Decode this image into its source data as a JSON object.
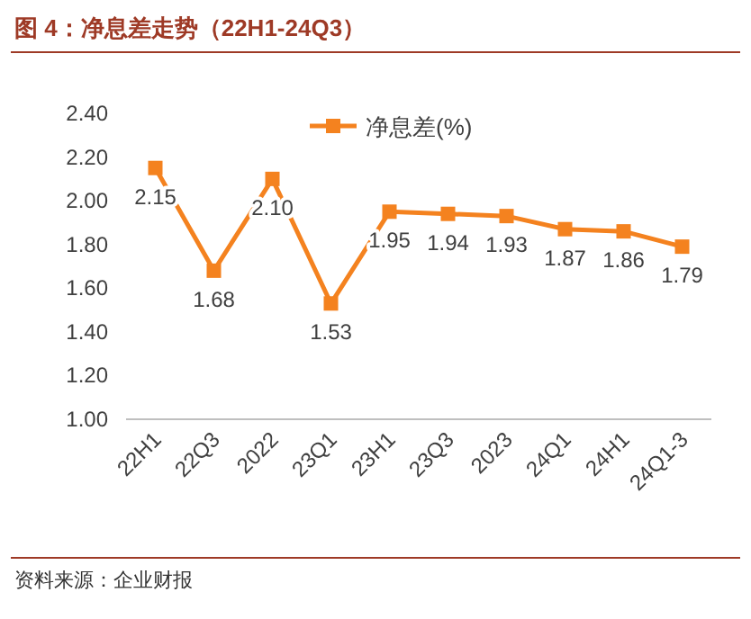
{
  "chart_data": {
    "type": "line",
    "title": "图 4：净息差走势（22H1-24Q3）",
    "annotations": [
      "资料来源：企业财报"
    ],
    "categories": [
      "22H1",
      "22Q3",
      "2022",
      "23Q1",
      "23H1",
      "23Q3",
      "2023",
      "24Q1",
      "24H1",
      "24Q1-3"
    ],
    "series": [
      {
        "name": "净息差(%)",
        "color": "#f4821f",
        "values": [
          2.15,
          1.68,
          2.1,
          1.53,
          1.95,
          1.94,
          1.93,
          1.87,
          1.86,
          1.79
        ],
        "value_labels": [
          "2.15",
          "1.68",
          "2.10",
          "1.53",
          "1.95",
          "1.94",
          "1.93",
          "1.87",
          "1.86",
          "1.79"
        ]
      }
    ],
    "ylim": [
      1.0,
      2.4
    ],
    "yticks": [
      {
        "value": 1.0,
        "label": "1.00"
      },
      {
        "value": 1.2,
        "label": "1.20"
      },
      {
        "value": 1.4,
        "label": "1.40"
      },
      {
        "value": 1.6,
        "label": "1.60"
      },
      {
        "value": 1.8,
        "label": "1.80"
      },
      {
        "value": 2.0,
        "label": "2.00"
      },
      {
        "value": 2.2,
        "label": "2.20"
      },
      {
        "value": 2.4,
        "label": "2.40"
      }
    ],
    "legend": "top",
    "marker": "square",
    "line_style": "solid",
    "grid": false
  }
}
